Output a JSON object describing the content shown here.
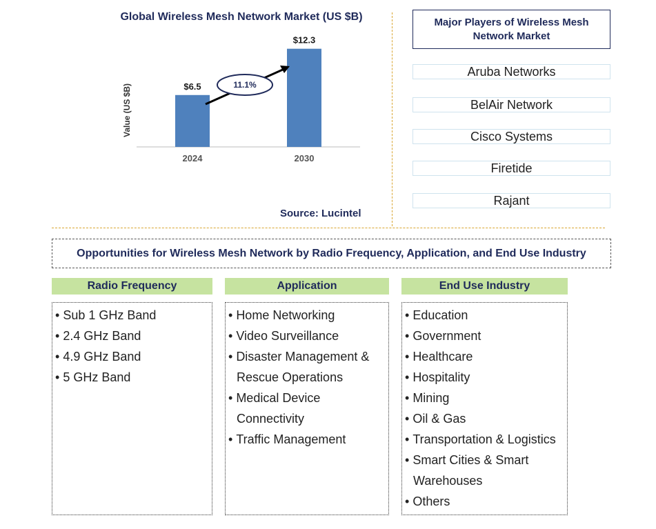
{
  "chart_data": {
    "type": "bar",
    "title": "Global Wireless Mesh Network Market (US $B)",
    "ylabel": "Value (US $B)",
    "categories": [
      "2024",
      "2030"
    ],
    "values": [
      6.5,
      12.3
    ],
    "value_labels": [
      "$6.5",
      "$12.3"
    ],
    "ylim": [
      0,
      14
    ],
    "cagr_label": "11.1%",
    "grid": false,
    "bar_color": "#4f81bd"
  },
  "source": "Source: Lucintel",
  "players": {
    "title": "Major Players of Wireless Mesh Network Market",
    "items": [
      "Aruba Networks",
      "BelAir Network",
      "Cisco Systems",
      "Firetide",
      "Rajant"
    ]
  },
  "opportunities": {
    "title": "Opportunities for Wireless Mesh Network by Radio Frequency, Application, and End Use Industry",
    "radio": {
      "heading": "Radio Frequency",
      "items": [
        "Sub 1 GHz Band",
        "2.4 GHz Band",
        "4.9 GHz Band",
        "5 GHz Band"
      ]
    },
    "application": {
      "heading": "Application",
      "items": [
        "Home Networking",
        "Video Surveillance",
        "Disaster Management &",
        "Rescue Operations",
        "Medical Device",
        "Connectivity",
        "Traffic Management"
      ]
    },
    "enduse": {
      "heading": "End Use Industry",
      "items": [
        "Education",
        "Government",
        "Healthcare",
        "Hospitality",
        "Mining",
        "Oil & Gas",
        "Transportation & Logistics",
        "Smart Cities & Smart",
        "Warehouses",
        "Others"
      ]
    }
  },
  "colors": {
    "accent": "#1f2a5a",
    "bar": "#4f81bd",
    "category_header": "#c6e3a0",
    "divider": "#d9a52f"
  }
}
